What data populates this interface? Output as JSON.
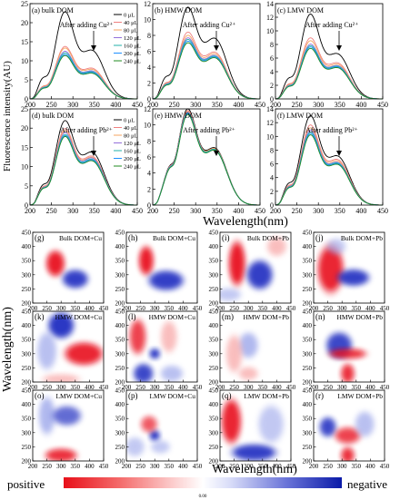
{
  "figure": {
    "y_label_top": "Fluorescence intensity(AU)",
    "x_label_top": "Wavelength(nm)",
    "y_label_bottom": "Wavelength(nm)",
    "x_label_bottom": "Wavelength(nm)",
    "colorbar": {
      "positive": "positive",
      "negative": "negative",
      "zero": "0.00"
    },
    "colors": {
      "positive_strong": "#e8101a",
      "negative_strong": "#0a1aa8",
      "neutral": "#ffffff"
    }
  },
  "chart_data": [
    {
      "type": "line",
      "panel": "(a) bulk DOM",
      "annotation": "After adding Cu²⁺",
      "legend_title": "",
      "series": [
        {
          "name": "0 μL",
          "color": "#000000",
          "peaks": [
            22,
            12.5
          ]
        },
        {
          "name": "40 μL",
          "color": "#f08080",
          "peaks": [
            13.2,
            7.9
          ]
        },
        {
          "name": "80 μL",
          "color": "#f4a460",
          "peaks": [
            12.8,
            7.6
          ]
        },
        {
          "name": "120 μL",
          "color": "#9370db",
          "peaks": [
            12.0,
            7.2
          ]
        },
        {
          "name": "160 μL",
          "color": "#20b2aa",
          "peaks": [
            11.6,
            7.0
          ]
        },
        {
          "name": "200 μL",
          "color": "#1e90ff",
          "peaks": [
            11.2,
            6.8
          ]
        },
        {
          "name": "240 μL",
          "color": "#228b22",
          "peaks": [
            10.9,
            6.6
          ]
        }
      ],
      "x_range": [
        200,
        450
      ],
      "y_range": [
        0,
        25
      ],
      "x_ticks": [
        200,
        250,
        300,
        350,
        400,
        450
      ],
      "y_ticks": [
        0,
        5,
        10,
        15,
        20,
        25
      ]
    },
    {
      "type": "line",
      "panel": "(b) HMW DOM",
      "annotation": "After adding Cu²⁺",
      "series": [
        {
          "name": "0 μL",
          "color": "#000000",
          "peaks": [
            11.0,
            7.5
          ]
        },
        {
          "name": "40 μL",
          "color": "#f08080",
          "peaks": [
            8.0,
            5.8
          ]
        },
        {
          "name": "80 μL",
          "color": "#f4a460",
          "peaks": [
            7.6,
            5.6
          ]
        },
        {
          "name": "120 μL",
          "color": "#9370db",
          "peaks": [
            7.3,
            5.4
          ]
        },
        {
          "name": "160 μL",
          "color": "#20b2aa",
          "peaks": [
            7.1,
            5.3
          ]
        },
        {
          "name": "200 μL",
          "color": "#1e90ff",
          "peaks": [
            6.9,
            5.2
          ]
        },
        {
          "name": "240 μL",
          "color": "#228b22",
          "peaks": [
            6.7,
            5.1
          ]
        }
      ],
      "x_range": [
        200,
        450
      ],
      "y_range": [
        0,
        12
      ],
      "x_ticks": [
        200,
        250,
        300,
        350,
        400,
        450
      ],
      "y_ticks": [
        0,
        2,
        4,
        6,
        8,
        10,
        12
      ]
    },
    {
      "type": "line",
      "panel": "(c) LMW DOM",
      "annotation": "After adding Cu²⁺",
      "series": [
        {
          "name": "0 μL",
          "color": "#000000",
          "peaks": [
            12.0,
            6.5
          ]
        },
        {
          "name": "40 μL",
          "color": "#f08080",
          "peaks": [
            8.6,
            5.2
          ]
        },
        {
          "name": "80 μL",
          "color": "#f4a460",
          "peaks": [
            8.2,
            5.0
          ]
        },
        {
          "name": "120 μL",
          "color": "#9370db",
          "peaks": [
            7.7,
            4.8
          ]
        },
        {
          "name": "160 μL",
          "color": "#20b2aa",
          "peaks": [
            7.5,
            4.7
          ]
        },
        {
          "name": "200 μL",
          "color": "#1e90ff",
          "peaks": [
            7.3,
            4.6
          ]
        },
        {
          "name": "240 μL",
          "color": "#228b22",
          "peaks": [
            7.1,
            4.5
          ]
        }
      ],
      "x_range": [
        200,
        450
      ],
      "y_range": [
        0,
        14
      ],
      "x_ticks": [
        200,
        250,
        300,
        350,
        400,
        450
      ],
      "y_ticks": [
        0,
        2,
        4,
        6,
        8,
        10,
        12,
        14
      ]
    },
    {
      "type": "line",
      "panel": "(d) bulk DOM",
      "annotation": "After adding Pb²⁺",
      "series": [
        {
          "name": "0 μL",
          "color": "#000000",
          "peaks": [
            21.0,
            13.5
          ]
        },
        {
          "name": "40 μL",
          "color": "#f08080",
          "peaks": [
            19.0,
            12.5
          ]
        },
        {
          "name": "80 μL",
          "color": "#f4a460",
          "peaks": [
            18.5,
            12.2
          ]
        },
        {
          "name": "120 μL",
          "color": "#9370db",
          "peaks": [
            18.0,
            12.0
          ]
        },
        {
          "name": "160 μL",
          "color": "#20b2aa",
          "peaks": [
            17.5,
            11.7
          ]
        },
        {
          "name": "200 μL",
          "color": "#1e90ff",
          "peaks": [
            17.2,
            11.5
          ]
        },
        {
          "name": "240 μL",
          "color": "#228b22",
          "peaks": [
            17.0,
            11.3
          ]
        }
      ],
      "x_range": [
        200,
        450
      ],
      "y_range": [
        0,
        25
      ],
      "x_ticks": [
        200,
        250,
        300,
        350,
        400,
        450
      ],
      "y_ticks": [
        0,
        5,
        10,
        15,
        20,
        25
      ]
    },
    {
      "type": "line",
      "panel": "(e) HMW DOM",
      "annotation": "After adding Pb²⁺",
      "series": [
        {
          "name": "0 μL",
          "color": "#000000",
          "peaks": [
            11.5,
            7.0
          ]
        },
        {
          "name": "40 μL",
          "color": "#f08080",
          "peaks": [
            11.3,
            6.9
          ]
        },
        {
          "name": "80 μL",
          "color": "#f4a460",
          "peaks": [
            11.2,
            6.9
          ]
        },
        {
          "name": "120 μL",
          "color": "#9370db",
          "peaks": [
            11.1,
            6.8
          ]
        },
        {
          "name": "160 μL",
          "color": "#20b2aa",
          "peaks": [
            11.0,
            6.8
          ]
        },
        {
          "name": "200 μL",
          "color": "#1e90ff",
          "peaks": [
            10.9,
            6.7
          ]
        },
        {
          "name": "240 μL",
          "color": "#228b22",
          "peaks": [
            10.8,
            6.7
          ]
        }
      ],
      "x_range": [
        200,
        450
      ],
      "y_range": [
        0,
        12
      ],
      "x_ticks": [
        200,
        250,
        300,
        350,
        400,
        450
      ],
      "y_ticks": [
        0,
        2,
        4,
        6,
        8,
        10,
        12
      ]
    },
    {
      "type": "line",
      "panel": "(f) LMW DOM",
      "annotation": "After adding Pb²⁺",
      "series": [
        {
          "name": "0 μL",
          "color": "#000000",
          "peaks": [
            12.5,
            7.0
          ]
        },
        {
          "name": "40 μL",
          "color": "#f08080",
          "peaks": [
            11.2,
            6.5
          ]
        },
        {
          "name": "80 μL",
          "color": "#f4a460",
          "peaks": [
            10.8,
            6.3
          ]
        },
        {
          "name": "120 μL",
          "color": "#9370db",
          "peaks": [
            10.5,
            6.1
          ]
        },
        {
          "name": "160 μL",
          "color": "#20b2aa",
          "peaks": [
            10.2,
            6.0
          ]
        },
        {
          "name": "200 μL",
          "color": "#1e90ff",
          "peaks": [
            10.0,
            5.9
          ]
        },
        {
          "name": "240 μL",
          "color": "#228b22",
          "peaks": [
            9.8,
            5.8
          ]
        }
      ],
      "x_range": [
        200,
        450
      ],
      "y_range": [
        0,
        14
      ],
      "x_ticks": [
        200,
        250,
        300,
        350,
        400,
        450
      ],
      "y_ticks": [
        0,
        2,
        4,
        6,
        8,
        10,
        12,
        14
      ]
    },
    {
      "type": "heatmap",
      "panels": [
        {
          "label": "(g)",
          "title": "Bulk DOM+Cu"
        },
        {
          "label": "(h)",
          "title": "Bulk DOM+Cu"
        },
        {
          "label": "(i)",
          "title": "Bulk DOM+Pb"
        },
        {
          "label": "(j)",
          "title": "Bulk DOM+Pb"
        },
        {
          "label": "(k)",
          "title": "HMW DOM+Cu"
        },
        {
          "label": "(l)",
          "title": "HMW DOM+Cu"
        },
        {
          "label": "(m)",
          "title": "HMW DOM+Pb"
        },
        {
          "label": "(n)",
          "title": "HMW DOM+Pb"
        },
        {
          "label": "(o)",
          "title": "LMW DOM+Cu"
        },
        {
          "label": "(p)",
          "title": "LMW DOM+Cu"
        },
        {
          "label": "(q)",
          "title": "LMW DOM+Pb"
        },
        {
          "label": "(r)",
          "title": "LMW DOM+Pb"
        }
      ],
      "x_range": [
        200,
        450
      ],
      "y_range": [
        200,
        450
      ],
      "x_ticks": [
        200,
        250,
        300,
        350,
        400,
        450
      ],
      "y_ticks": [
        200,
        250,
        300,
        350,
        400,
        450
      ]
    }
  ]
}
